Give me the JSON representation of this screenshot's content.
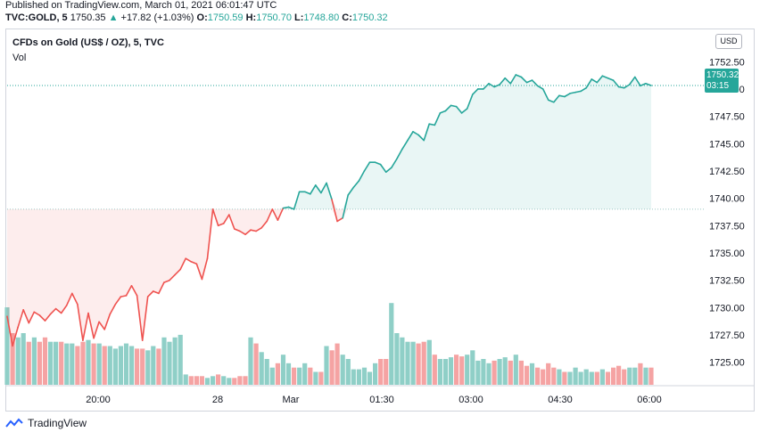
{
  "header": {
    "published": "Published on TradingView.com, March 01, 2021 06:01:47 UTC",
    "symbol": "TVC:GOLD, 5",
    "last": "1750.35",
    "arrow": "▲",
    "change": "+17.82 (+1.03%)",
    "o_label": "O:",
    "o_value": "1750.59",
    "h_label": "H:",
    "h_value": "1750.70",
    "l_label": "L:",
    "l_value": "1748.80",
    "c_label": "C:",
    "c_value": "1750.32"
  },
  "legend": {
    "title": "CFDs on Gold (US$ / OZ), 5, TVC",
    "vol_label": "Vol"
  },
  "currency_button": "USD",
  "price_tag": {
    "price": "1750.32",
    "countdown": "03:15"
  },
  "footer": {
    "brand": "TradingView"
  },
  "colors": {
    "up": "#26a69a",
    "down": "#ef5350",
    "vol_up": "#8fcfc7",
    "vol_down": "#f5a3a3"
  },
  "chart_data": {
    "type": "line",
    "title": "CFDs on Gold (US$ / OZ), 5, TVC",
    "baseline": 1739.0,
    "ylim": [
      1724.0,
      1753.5
    ],
    "y_ticks": [
      "1752.50",
      "1750.00",
      "1747.50",
      "1745.00",
      "1742.50",
      "1740.00",
      "1737.50",
      "1735.00",
      "1732.50",
      "1730.00",
      "1727.50",
      "1725.00"
    ],
    "x_ticks": [
      "20:00",
      "28",
      "Mar",
      "01:30",
      "03:00",
      "04:30",
      "06:00"
    ],
    "grid": false,
    "series": [
      {
        "values": [
          1729.2,
          1726.5,
          1728.2,
          1729.8,
          1728.6,
          1729.6,
          1729.3,
          1728.8,
          1729.4,
          1729.9,
          1729.5,
          1730.2,
          1731.3,
          1730.3,
          1727.0,
          1729.5,
          1727.2,
          1728.7,
          1728.0,
          1729.4,
          1730.3,
          1731.0,
          1731.1,
          1732.0,
          1731.1,
          1727.0,
          1731.0,
          1731.5,
          1731.3,
          1732.3,
          1732.5,
          1733.0,
          1733.5,
          1734.5,
          1734.2,
          1734.0,
          1732.6,
          1734.5,
          1739.0,
          1737.5,
          1737.7,
          1738.5,
          1737.2,
          1737.0,
          1736.7,
          1737.1,
          1737.0,
          1737.3,
          1737.9,
          1739.0,
          1738.0,
          1739.1,
          1739.2,
          1739.0,
          1740.6,
          1740.6,
          1740.4,
          1741.2,
          1740.5,
          1741.4,
          1739.9,
          1737.9,
          1738.2,
          1740.3,
          1741.0,
          1741.6,
          1742.5,
          1743.3,
          1743.3,
          1743.1,
          1742.4,
          1742.8,
          1743.6,
          1744.5,
          1745.3,
          1746.1,
          1745.8,
          1745.3,
          1746.8,
          1746.7,
          1747.8,
          1748.0,
          1748.5,
          1748.4,
          1747.8,
          1748.2,
          1749.5,
          1750.0,
          1750.0,
          1750.5,
          1750.2,
          1750.4,
          1751.0,
          1750.5,
          1751.3,
          1751.1,
          1750.6,
          1750.8,
          1750.3,
          1750.0,
          1749.0,
          1748.8,
          1749.4,
          1749.3,
          1749.6,
          1749.7,
          1749.8,
          1750.1,
          1750.9,
          1750.6,
          1751.2,
          1751.0,
          1750.8,
          1750.2,
          1750.1,
          1750.4,
          1751.1,
          1750.3,
          1750.5,
          1750.32
        ]
      }
    ],
    "volume": {
      "values": [
        0.9,
        0.6,
        0.55,
        0.6,
        0.5,
        0.55,
        0.5,
        0.55,
        0.5,
        0.5,
        0.5,
        0.48,
        0.48,
        0.45,
        0.5,
        0.52,
        0.48,
        0.48,
        0.45,
        0.45,
        0.42,
        0.45,
        0.48,
        0.45,
        0.42,
        0.42,
        0.4,
        0.45,
        0.42,
        0.55,
        0.5,
        0.55,
        0.58,
        0.12,
        0.1,
        0.1,
        0.1,
        0.08,
        0.1,
        0.12,
        0.1,
        0.08,
        0.08,
        0.1,
        0.1,
        0.55,
        0.48,
        0.38,
        0.3,
        0.2,
        0.25,
        0.35,
        0.25,
        0.2,
        0.2,
        0.25,
        0.2,
        0.15,
        0.15,
        0.45,
        0.4,
        0.48,
        0.35,
        0.3,
        0.18,
        0.18,
        0.2,
        0.15,
        0.25,
        0.3,
        0.3,
        0.95,
        0.6,
        0.55,
        0.5,
        0.5,
        0.48,
        0.5,
        0.52,
        0.35,
        0.3,
        0.3,
        0.32,
        0.35,
        0.33,
        0.35,
        0.4,
        0.28,
        0.3,
        0.25,
        0.28,
        0.3,
        0.32,
        0.28,
        0.35,
        0.28,
        0.22,
        0.25,
        0.2,
        0.18,
        0.25,
        0.2,
        0.18,
        0.15,
        0.15,
        0.2,
        0.15,
        0.18,
        0.15,
        0.15,
        0.18,
        0.15,
        0.2,
        0.22,
        0.18,
        0.2,
        0.2,
        0.25,
        0.2,
        0.2
      ],
      "ylim": [
        0,
        1.5
      ]
    }
  }
}
